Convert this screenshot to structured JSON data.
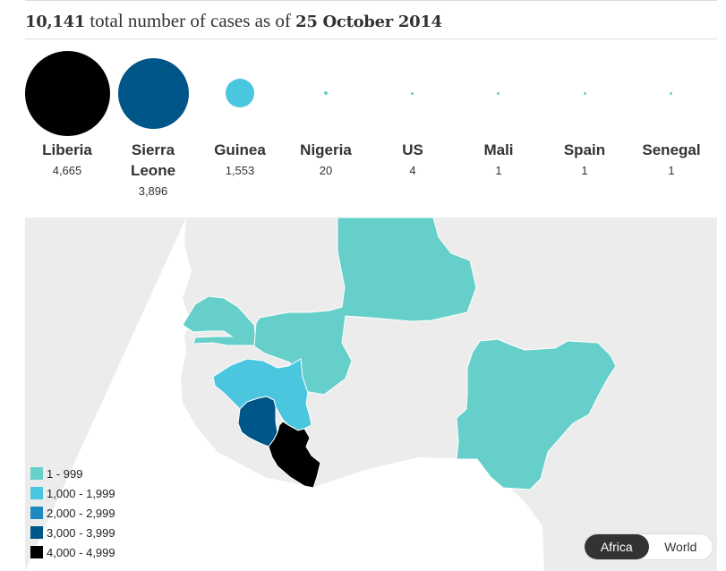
{
  "headline": {
    "count": "10,141",
    "middle": " total number of cases as of ",
    "date": "25 October 2014"
  },
  "countries": [
    {
      "name": "Liberia",
      "value": "4,665",
      "color": "#000000"
    },
    {
      "name": "Sierra Leone",
      "value": "3,896",
      "color": "#005689"
    },
    {
      "name": "Guinea",
      "value": "1,553",
      "color": "#4bc6df"
    },
    {
      "name": "Nigeria",
      "value": "20",
      "color": "#66cfc9"
    },
    {
      "name": "US",
      "value": "4",
      "color": "#66cfc9"
    },
    {
      "name": "Mali",
      "value": "1",
      "color": "#66cfc9"
    },
    {
      "name": "Spain",
      "value": "1",
      "color": "#66cfc9"
    },
    {
      "name": "Senegal",
      "value": "1",
      "color": "#66cfc9"
    }
  ],
  "legend": [
    {
      "label": "1 - 999",
      "color": "#66cfc9"
    },
    {
      "label": "1,000 - 1,999",
      "color": "#4bc6df"
    },
    {
      "label": "2,000 - 2,999",
      "color": "#1f8abf"
    },
    {
      "label": "3,000 - 3,999",
      "color": "#005689"
    },
    {
      "label": "4,000 - 4,999",
      "color": "#000000"
    }
  ],
  "toggle": {
    "africa": "Africa",
    "world": "World",
    "active": "Africa"
  },
  "colors": {
    "land": "#ececec",
    "sea": "#ffffff"
  }
}
